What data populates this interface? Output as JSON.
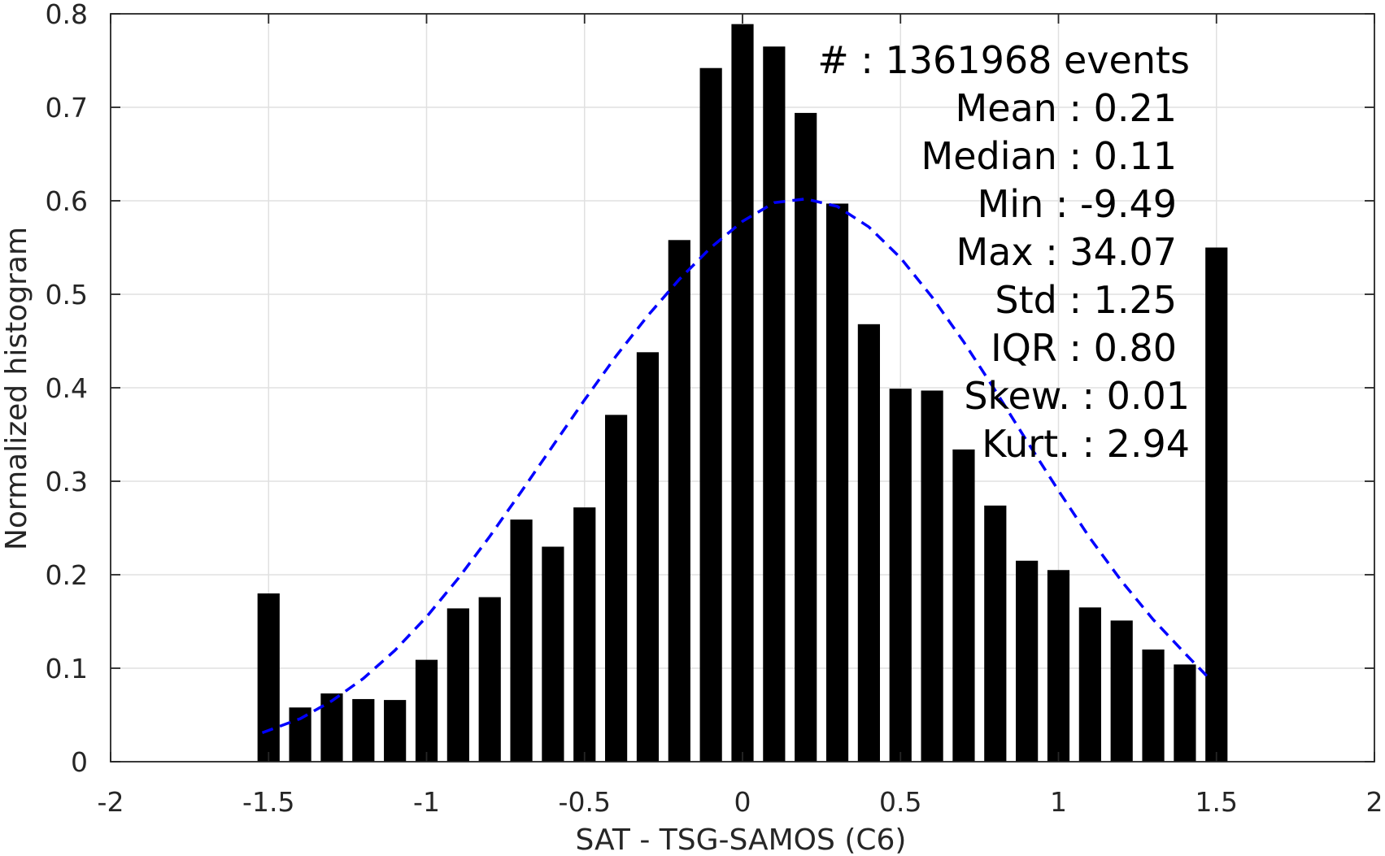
{
  "chart_data": {
    "type": "bar",
    "xlabel": "SAT - TSG-SAMOS (C6)",
    "ylabel": "Normalized histogram",
    "xlim": [
      -2,
      2
    ],
    "ylim": [
      0,
      0.8
    ],
    "grid": true,
    "xticks": [
      -2,
      -1.5,
      -1,
      -0.5,
      0,
      0.5,
      1,
      1.5,
      2
    ],
    "xtick_labels": [
      "-2",
      "-1.5",
      "-1",
      "-0.5",
      "0",
      "0.5",
      "1",
      "1.5",
      "2"
    ],
    "yticks": [
      0,
      0.1,
      0.2,
      0.3,
      0.4,
      0.5,
      0.6,
      0.7,
      0.8
    ],
    "ytick_labels": [
      "0",
      "0.1",
      "0.2",
      "0.3",
      "0.4",
      "0.5",
      "0.6",
      "0.7",
      "0.8"
    ],
    "bar_color": "#000000",
    "bar_width": 0.07,
    "series": [
      {
        "type": "bar",
        "x": [
          -1.5,
          -1.4,
          -1.3,
          -1.2,
          -1.1,
          -1.0,
          -0.9,
          -0.8,
          -0.7,
          -0.6,
          -0.5,
          -0.4,
          -0.3,
          -0.2,
          -0.1,
          0.0,
          0.1,
          0.2,
          0.3,
          0.4,
          0.5,
          0.6,
          0.7,
          0.8,
          0.9,
          1.0,
          1.1,
          1.2,
          1.3,
          1.4,
          1.5
        ],
        "values": [
          0.18,
          0.058,
          0.073,
          0.067,
          0.066,
          0.109,
          0.164,
          0.176,
          0.259,
          0.23,
          0.272,
          0.371,
          0.438,
          0.558,
          0.742,
          0.789,
          0.765,
          0.694,
          0.597,
          0.468,
          0.399,
          0.397,
          0.334,
          0.274,
          0.215,
          0.205,
          0.165,
          0.151,
          0.12,
          0.104,
          0.55
        ]
      },
      {
        "type": "line",
        "style": "dashed",
        "color": "#0000ff",
        "x": [
          -1.52,
          -1.4,
          -1.3,
          -1.2,
          -1.1,
          -1.0,
          -0.9,
          -0.8,
          -0.7,
          -0.6,
          -0.5,
          -0.4,
          -0.3,
          -0.2,
          -0.1,
          0.0,
          0.1,
          0.2,
          0.3,
          0.4,
          0.5,
          0.6,
          0.7,
          0.8,
          0.9,
          1.0,
          1.1,
          1.2,
          1.3,
          1.4,
          1.48
        ],
        "values": [
          0.031,
          0.046,
          0.065,
          0.089,
          0.119,
          0.155,
          0.196,
          0.241,
          0.289,
          0.338,
          0.387,
          0.434,
          0.477,
          0.516,
          0.55,
          0.578,
          0.598,
          0.602,
          0.594,
          0.572,
          0.539,
          0.497,
          0.449,
          0.397,
          0.343,
          0.29,
          0.239,
          0.193,
          0.152,
          0.116,
          0.088
        ]
      }
    ],
    "annotations": [
      "#  : 1361968 events",
      "Mean : 0.21",
      "Median : 0.11",
      "Min : -9.49",
      "Max : 34.07",
      "Std : 1.25",
      "IQR : 0.80",
      "Skew. : 0.01",
      "Kurt. : 2.94"
    ]
  }
}
